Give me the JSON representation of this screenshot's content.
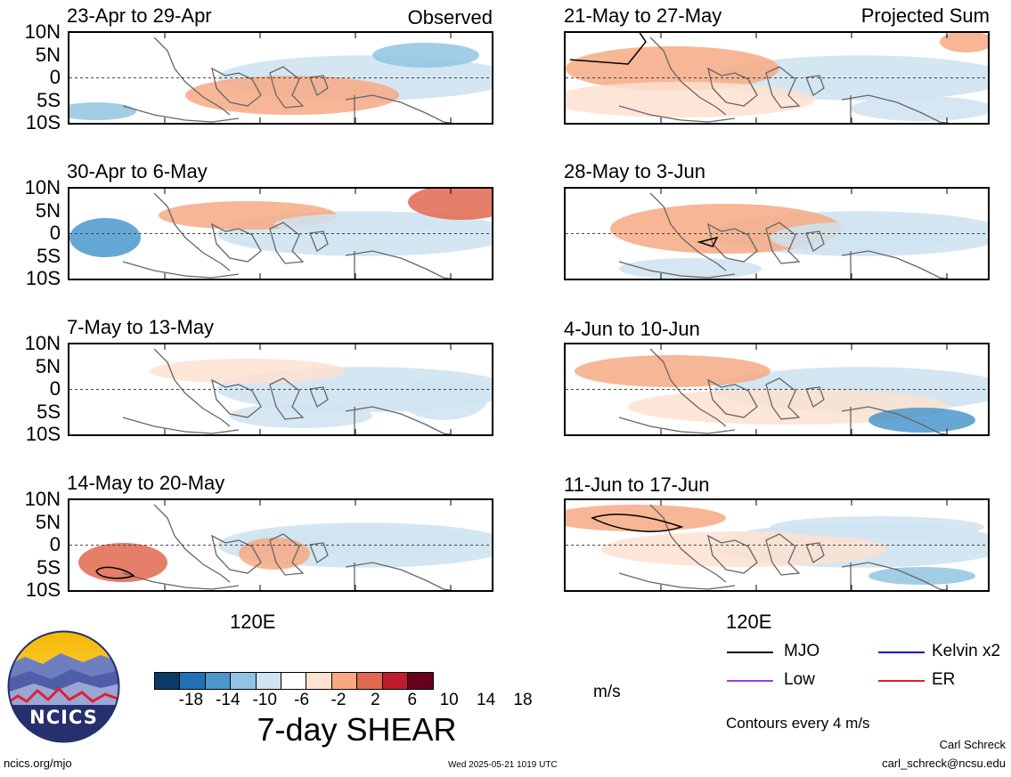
{
  "panels": [
    {
      "title": "23-Apr to 29-Apr",
      "tag": "Observed"
    },
    {
      "title": "30-Apr to 6-May",
      "tag": ""
    },
    {
      "title": "7-May to 13-May",
      "tag": ""
    },
    {
      "title": "14-May to 20-May",
      "tag": ""
    },
    {
      "title": "21-May to 27-May",
      "tag": "Projected Sum"
    },
    {
      "title": "28-May to 3-Jun",
      "tag": ""
    },
    {
      "title": "4-Jun to 10-Jun",
      "tag": ""
    },
    {
      "title": "11-Jun to 17-Jun",
      "tag": ""
    }
  ],
  "lat_labels": [
    "10N",
    "5N",
    "0",
    "5S",
    "10S"
  ],
  "lon_label": "120E",
  "colorbar": {
    "colors": [
      "#0b3a66",
      "#2172b4",
      "#4a98cc",
      "#91c4e2",
      "#cfe3f1",
      "#ffffff",
      "#fde1d1",
      "#f6a983",
      "#e0694f",
      "#bf1d2d",
      "#67001f"
    ],
    "labels": [
      "-18",
      "-14",
      "-10",
      "-6",
      "-2",
      "2",
      "6",
      "10",
      "14",
      "18"
    ],
    "units": "m/s",
    "title": "7-day SHEAR"
  },
  "legend": {
    "items": [
      {
        "label": "MJO",
        "color": "#000000"
      },
      {
        "label": "Kelvin x2",
        "color": "#0000cc"
      },
      {
        "label": "Low",
        "color": "#9a3ee0"
      },
      {
        "label": "ER",
        "color": "#e02020"
      }
    ],
    "contours_note": "Contours every 4 m/s"
  },
  "logo": {
    "text": "NCICS"
  },
  "footer": {
    "left": "ncics.org/mjo",
    "center": "Wed 2025-05-21 1019 UTC",
    "author": "Carl Schreck",
    "email": "carl_schreck@ncsu.edu"
  }
}
